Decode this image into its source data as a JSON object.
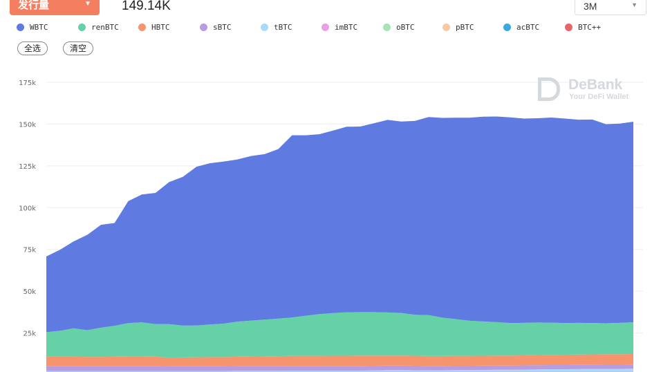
{
  "header": {
    "metric_label": "发行量",
    "value": "149.14K",
    "range": "3M"
  },
  "buttons": {
    "select_all": "全选",
    "clear": "清空"
  },
  "watermark": {
    "name": "DeBank",
    "tagline": "Your DeFi Wallet"
  },
  "chart_data": {
    "type": "area",
    "stacked": true,
    "title": "",
    "xlabel": "",
    "ylabel": "",
    "ylim": [
      0,
      175000
    ],
    "yticks": [
      "25k",
      "50k",
      "75k",
      "100k",
      "125k",
      "150k",
      "175k"
    ],
    "ytick_values": [
      25000,
      50000,
      75000,
      100000,
      125000,
      150000,
      175000
    ],
    "grid": true,
    "legend_position": "top-left",
    "unit": "k",
    "series": [
      {
        "name": "WBTC",
        "color": "#5f7ae0",
        "values": [
          45.3,
          48.5,
          52,
          57,
          61.5,
          61.5,
          73,
          76.5,
          78.5,
          85,
          89,
          95,
          96.5,
          97,
          97,
          98.5,
          99,
          101.5,
          109,
          108,
          107.6,
          109.2,
          111,
          111,
          113,
          115.2,
          114.5,
          116,
          118.5,
          119.5,
          120.5,
          121.5,
          122.5,
          123,
          123,
          122.2,
          122.2,
          122.7,
          122.3,
          121.5,
          121.7,
          119.1,
          119.2,
          120
        ]
      },
      {
        "name": "renBTC",
        "color": "#66d1a6",
        "values": [
          14.7,
          15.5,
          17,
          16,
          17.5,
          18.5,
          20,
          20.5,
          19.5,
          20,
          19,
          19,
          19.5,
          20,
          21,
          21.5,
          22,
          22.5,
          23,
          24,
          25,
          25.5,
          26,
          26,
          26,
          25.8,
          25.5,
          24.5,
          24.5,
          23,
          22,
          21,
          20.5,
          20,
          19.5,
          19.5,
          19.5,
          19.3,
          19,
          19,
          18.8,
          18.5,
          18.8,
          19
        ]
      },
      {
        "name": "HBTC",
        "color": "#f6946d",
        "values": [
          5.5,
          5.5,
          5.5,
          5.4,
          5.4,
          5.5,
          5.6,
          5.6,
          5.5,
          5.2,
          5.3,
          5.4,
          5.5,
          5.5,
          5.6,
          5.7,
          5.8,
          5.9,
          6,
          6,
          6,
          6.1,
          6.1,
          6.2,
          6.1,
          6,
          6,
          6,
          5.9,
          5.9,
          5.9,
          5.9,
          5.9,
          6,
          6,
          6,
          6.1,
          6.1,
          6.2,
          6.2,
          6.3,
          6.3,
          6.3,
          6.3
        ]
      },
      {
        "name": "sBTC",
        "color": "#b89be0",
        "values": [
          3,
          3,
          3,
          3,
          3,
          3,
          3,
          3,
          3,
          2.8,
          2.8,
          2.8,
          2.8,
          2.8,
          2.8,
          2.8,
          2.8,
          2.8,
          2.8,
          2.8,
          2.8,
          2.8,
          2.8,
          2.8,
          2.8,
          2.7,
          2.7,
          2.7,
          2.6,
          2.6,
          2.6,
          2.6,
          2.6,
          2.5,
          2.5,
          2.5,
          2.5,
          2.5,
          2.5,
          2.5,
          2.5,
          2.5,
          2.5,
          2.5
        ]
      },
      {
        "name": "tBTC",
        "color": "#a9dbf6",
        "values": [
          0.3,
          0.3,
          0.3,
          0.3,
          0.3,
          0.3,
          0.3,
          0.3,
          0.3,
          0.3,
          0.3,
          0.3,
          0.3,
          0.3,
          0.4,
          0.4,
          0.4,
          0.4,
          0.5,
          0.5,
          0.5,
          0.5,
          0.5,
          0.5,
          0.6,
          0.8,
          0.8,
          0.7,
          0.7,
          0.7,
          0.8,
          0.8,
          0.9,
          1,
          1,
          1.1,
          1.2,
          1.3,
          1.3,
          1.4,
          1.4,
          1.5,
          1.5,
          1.6
        ]
      },
      {
        "name": "imBTC",
        "color": "#e8a2e2",
        "values": [
          1.5,
          1.5,
          1.5,
          1.5,
          1.5,
          1.5,
          1.5,
          1.5,
          1.5,
          1.5,
          1.5,
          1.5,
          1.5,
          1.5,
          1.5,
          1.5,
          1.5,
          1.5,
          1.5,
          1.5,
          1.5,
          1.5,
          1.5,
          1.5,
          1.5,
          1.5,
          1.5,
          1.5,
          1.5,
          1.5,
          1.5,
          1.5,
          1.5,
          1.5,
          1.5,
          1.5,
          1.5,
          1.5,
          1.5,
          1.5,
          1.5,
          1.5,
          1.5,
          1.5
        ]
      },
      {
        "name": "oBTC",
        "color": "#a6e3b8",
        "values": [
          0.2,
          0.2,
          0.2,
          0.2,
          0.2,
          0.2,
          0.2,
          0.2,
          0.2,
          0.2,
          0.2,
          0.2,
          0.2,
          0.2,
          0.2,
          0.2,
          0.2,
          0.2,
          0.2,
          0.2,
          0.2,
          0.2,
          0.2,
          0.2,
          0.2,
          0.2,
          0.2,
          0.2,
          0.2,
          0.2,
          0.2,
          0.2,
          0.2,
          0.2,
          0.2,
          0.2,
          0.2,
          0.2,
          0.2,
          0.2,
          0.2,
          0.2,
          0.2,
          0.2
        ]
      },
      {
        "name": "pBTC",
        "color": "#f8c9a3",
        "values": [
          0.1,
          0.1,
          0.1,
          0.1,
          0.1,
          0.1,
          0.1,
          0.1,
          0.1,
          0.1,
          0.1,
          0.1,
          0.1,
          0.1,
          0.1,
          0.1,
          0.1,
          0.1,
          0.1,
          0.1,
          0.1,
          0.1,
          0.1,
          0.1,
          0.1,
          0.1,
          0.1,
          0.1,
          0.1,
          0.1,
          0.1,
          0.1,
          0.1,
          0.1,
          0.1,
          0.1,
          0.1,
          0.1,
          0.1,
          0.1,
          0.1,
          0.1,
          0.1,
          0.1
        ]
      },
      {
        "name": "acBTC",
        "color": "#3ba9dd",
        "values": [
          0.1,
          0.1,
          0.1,
          0.1,
          0.1,
          0.1,
          0.1,
          0.1,
          0.1,
          0.1,
          0.1,
          0.1,
          0.1,
          0.1,
          0.1,
          0.1,
          0.1,
          0.1,
          0.1,
          0.1,
          0.1,
          0.1,
          0.1,
          0.1,
          0.1,
          0.1,
          0.1,
          0.1,
          0.1,
          0.1,
          0.1,
          0.1,
          0.1,
          0.1,
          0.1,
          0.1,
          0.1,
          0.1,
          0.1,
          0.1,
          0.1,
          0.1,
          0.1,
          0.1
        ]
      },
      {
        "name": "BTC++",
        "color": "#e8666a",
        "values": [
          0.1,
          0.1,
          0.1,
          0.1,
          0.1,
          0.1,
          0.1,
          0.1,
          0.1,
          0.1,
          0.1,
          0.1,
          0.1,
          0.1,
          0.1,
          0.1,
          0.1,
          0.1,
          0.1,
          0.1,
          0.1,
          0.1,
          0.1,
          0.1,
          0.1,
          0.1,
          0.1,
          0.1,
          0.1,
          0.1,
          0.1,
          0.1,
          0.1,
          0.1,
          0.1,
          0.1,
          0.1,
          0.1,
          0.1,
          0.1,
          0.1,
          0.1,
          0.1,
          0.1
        ]
      }
    ]
  }
}
